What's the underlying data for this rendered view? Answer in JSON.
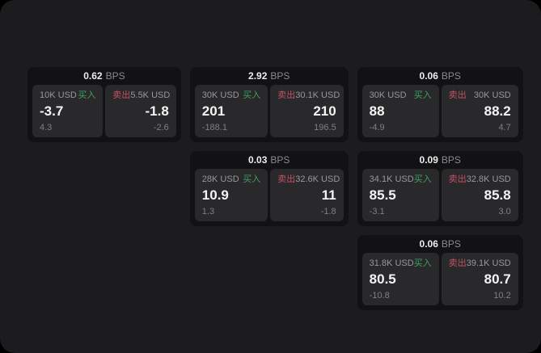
{
  "labels": {
    "bps_unit": "BPS",
    "buy": "买入",
    "sell": "卖出"
  },
  "colors": {
    "outer_background": "#000000",
    "window_background": "#1c1c1e",
    "card_background": "#121214",
    "panel_background": "#29292b",
    "buy_accent": "#3ea15c",
    "sell_accent": "#c05265",
    "primary_text": "#f4f4f5",
    "muted_text": "#98989d"
  },
  "cards": [
    {
      "bps": "0.62",
      "buy": {
        "amount": "10K USD",
        "price": "-3.7",
        "sub": "4.3"
      },
      "sell": {
        "amount": "5.5K USD",
        "price": "-1.8",
        "sub": "-2.6"
      }
    },
    {
      "bps": "2.92",
      "buy": {
        "amount": "30K USD",
        "price": "201",
        "sub": "-188.1"
      },
      "sell": {
        "amount": "30.1K USD",
        "price": "210",
        "sub": "196.5"
      }
    },
    {
      "bps": "0.06",
      "buy": {
        "amount": "30K USD",
        "price": "88",
        "sub": "-4.9"
      },
      "sell": {
        "amount": "30K USD",
        "price": "88.2",
        "sub": "4.7"
      }
    },
    {
      "bps": "0.03",
      "buy": {
        "amount": "28K USD",
        "price": "10.9",
        "sub": "1.3"
      },
      "sell": {
        "amount": "32.6K USD",
        "price": "11",
        "sub": "-1.8"
      }
    },
    {
      "bps": "0.09",
      "buy": {
        "amount": "34.1K USD",
        "price": "85.5",
        "sub": "-3.1"
      },
      "sell": {
        "amount": "32.8K USD",
        "price": "85.8",
        "sub": "3.0"
      }
    },
    {
      "bps": "0.06",
      "buy": {
        "amount": "31.8K USD",
        "price": "80.5",
        "sub": "-10.8"
      },
      "sell": {
        "amount": "39.1K USD",
        "price": "80.7",
        "sub": "10.2"
      }
    }
  ]
}
